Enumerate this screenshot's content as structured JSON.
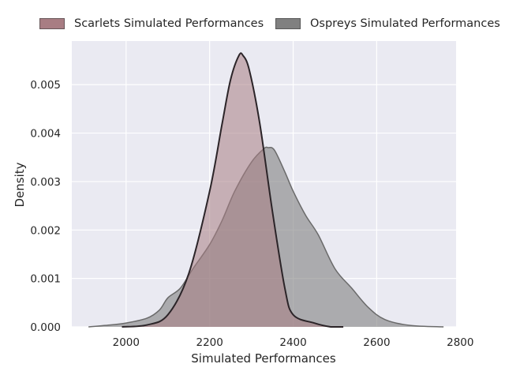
{
  "chart_data": {
    "type": "area",
    "xlabel": "Simulated Performances",
    "ylabel": "Density",
    "xlim": [
      1870,
      2790
    ],
    "ylim": [
      0,
      0.0059
    ],
    "x_ticks": [
      2000,
      2200,
      2400,
      2600,
      2800
    ],
    "y_ticks": [
      0,
      0.001,
      0.002,
      0.003,
      0.004,
      0.005
    ],
    "x_tick_labels": [
      "2000",
      "2200",
      "2400",
      "2600",
      "2800"
    ],
    "y_tick_labels": [
      "0.000",
      "0.001",
      "0.002",
      "0.003",
      "0.004",
      "0.005"
    ],
    "grid": true,
    "legend_position": "top",
    "series": [
      {
        "name": "Scarlets Simulated Performances",
        "fill_color": "#a87d83",
        "line_color": "#2b2428",
        "x": [
          1990,
          2050,
          2100,
          2150,
          2200,
          2230,
          2250,
          2270,
          2280,
          2295,
          2320,
          2350,
          2380,
          2400,
          2450,
          2490,
          2520
        ],
        "y": [
          0.0,
          4e-05,
          0.00025,
          0.0011,
          0.0028,
          0.0042,
          0.0051,
          0.0056,
          0.0056,
          0.0053,
          0.0042,
          0.0024,
          0.0008,
          0.00025,
          8e-05,
          0.0,
          0.0
        ]
      },
      {
        "name": "Ospreys Simulated Performances",
        "fill_color": "#808080",
        "line_color": "#6a6a6a",
        "x": [
          1910,
          1950,
          2000,
          2050,
          2080,
          2100,
          2130,
          2160,
          2200,
          2230,
          2260,
          2300,
          2330,
          2340,
          2355,
          2380,
          2400,
          2430,
          2460,
          2500,
          2540,
          2580,
          2620,
          2680,
          2760
        ],
        "y": [
          0.0,
          3e-05,
          8e-05,
          0.00018,
          0.00035,
          0.0006,
          0.0008,
          0.0012,
          0.0017,
          0.0022,
          0.0028,
          0.0034,
          0.00368,
          0.0037,
          0.00365,
          0.0032,
          0.0028,
          0.0023,
          0.0019,
          0.0012,
          0.0008,
          0.0004,
          0.00015,
          3e-05,
          0.0
        ]
      }
    ]
  }
}
